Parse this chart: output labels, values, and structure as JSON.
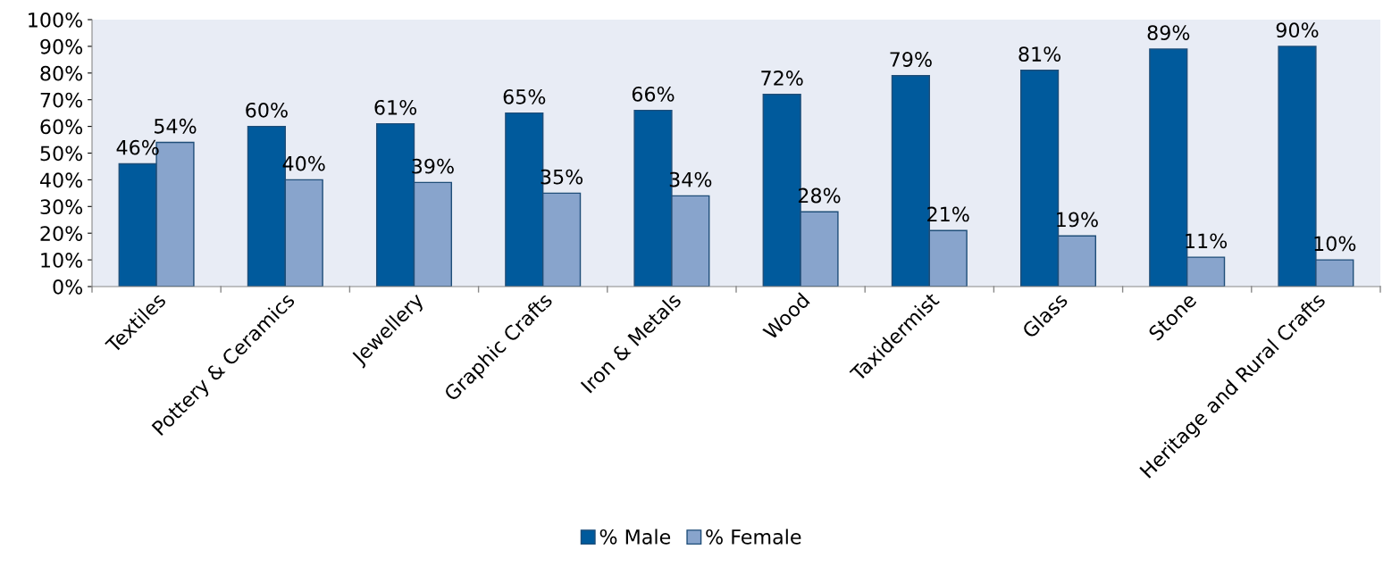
{
  "chart_data": {
    "type": "bar",
    "categories": [
      "Textiles",
      "Pottery & Ceramics",
      "Jewellery",
      "Graphic Crafts",
      "Iron & Metals",
      "Wood",
      "Taxidermist",
      "Glass",
      "Stone",
      "Heritage and Rural Crafts"
    ],
    "series": [
      {
        "name": "% Male",
        "color": "#005a9c",
        "values": [
          46,
          60,
          61,
          65,
          66,
          72,
          79,
          81,
          89,
          90
        ],
        "value_labels": [
          "46%",
          "60%",
          "61%",
          "65%",
          "66%",
          "72%",
          "79%",
          "81%",
          "89%",
          "90%"
        ]
      },
      {
        "name": "% Female",
        "color": "#88a4cc",
        "values": [
          54,
          40,
          39,
          35,
          34,
          28,
          21,
          19,
          11,
          10
        ],
        "value_labels": [
          "54%",
          "40%",
          "39%",
          "35%",
          "34%",
          "28%",
          "21%",
          "19%",
          "11%",
          "10%"
        ]
      }
    ],
    "ylim": [
      0,
      100
    ],
    "yticks": [
      {
        "value": 0,
        "label": "0%"
      },
      {
        "value": 10,
        "label": "10%"
      },
      {
        "value": 20,
        "label": "20%"
      },
      {
        "value": 30,
        "label": "30%"
      },
      {
        "value": 40,
        "label": "40%"
      },
      {
        "value": 50,
        "label": "50%"
      },
      {
        "value": 60,
        "label": "60%"
      },
      {
        "value": 70,
        "label": "70%"
      },
      {
        "value": 80,
        "label": "80%"
      },
      {
        "value": 90,
        "label": "90%"
      },
      {
        "value": 100,
        "label": "100%"
      }
    ],
    "grid": false,
    "legend": "bottom"
  }
}
